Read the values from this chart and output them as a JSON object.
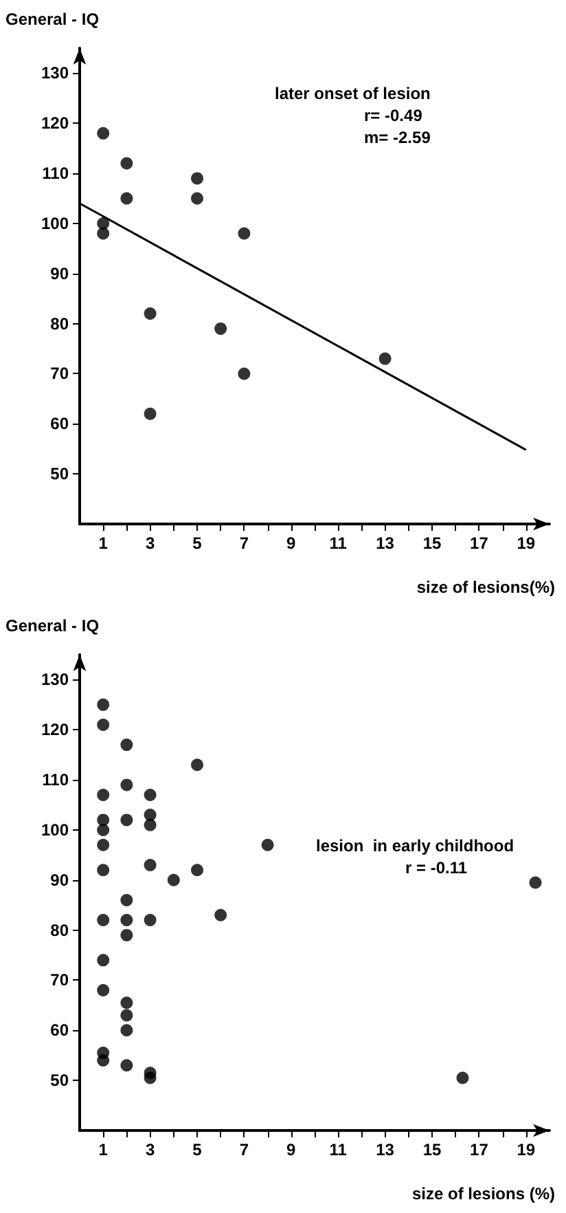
{
  "chart_data": [
    {
      "type": "scatter",
      "ylabel": "General - IQ",
      "xlabel": "size of lesions(%)",
      "annotations": [
        "later onset of lesion",
        "r= -0.49",
        "m= -2.59"
      ],
      "series": [
        {
          "color": "#000000",
          "x": [
            1,
            1,
            1,
            2,
            2,
            3,
            3,
            5,
            5,
            6,
            7,
            7,
            13
          ],
          "values": [
            118,
            100,
            98,
            112,
            105,
            82,
            62,
            109,
            105,
            79,
            98,
            70,
            73
          ]
        },
        {
          "type": "line",
          "color": "#000000",
          "marker": "none",
          "x": [
            0,
            19
          ],
          "values": [
            104,
            54.8
          ]
        }
      ],
      "xlim": [
        0,
        20
      ],
      "xticks": [
        1,
        {
          "value": 2,
          "label": null
        },
        3,
        {
          "value": 4,
          "label": null
        },
        5,
        {
          "value": 6,
          "label": null
        },
        7,
        {
          "value": 8,
          "label": null
        },
        9,
        {
          "value": 10,
          "label": null
        },
        11,
        {
          "value": 12,
          "label": null
        },
        13,
        {
          "value": 14,
          "label": null
        },
        15,
        {
          "value": 16,
          "label": null
        },
        17,
        {
          "value": 18,
          "label": null
        },
        19
      ],
      "ylim": [
        40,
        135
      ],
      "yticks": [
        50,
        60,
        70,
        80,
        90,
        100,
        110,
        120,
        130
      ],
      "grid": false,
      "marker": "circle"
    },
    {
      "type": "scatter",
      "ylabel": "General - IQ",
      "xlabel": "size of lesions (%)",
      "annotations": [
        "lesion  in early childhood",
        "r = -0.11"
      ],
      "series": [
        {
          "color": "#000000",
          "x": [
            1,
            1,
            1,
            1,
            1,
            1,
            1,
            1,
            1,
            1,
            1,
            1,
            2,
            2,
            2,
            2,
            2,
            2,
            2,
            2,
            2,
            2,
            3,
            3,
            3,
            3,
            3,
            3,
            3,
            4,
            5,
            5,
            6,
            8,
            16.3,
            19.4
          ],
          "values": [
            125,
            121,
            107,
            102,
            100,
            97,
            92,
            82,
            74,
            68,
            55.5,
            54,
            117,
            109,
            102,
            86,
            82,
            79,
            65.5,
            63,
            60,
            53,
            107,
            103,
            101,
            93,
            82,
            51.5,
            50.5,
            90,
            113,
            92,
            83,
            97,
            50.5,
            89.5
          ]
        }
      ],
      "xlim": [
        0,
        20
      ],
      "xticks": [
        1,
        {
          "value": 2,
          "label": null
        },
        3,
        {
          "value": 4,
          "label": null
        },
        5,
        {
          "value": 6,
          "label": null
        },
        7,
        {
          "value": 8,
          "label": null
        },
        9,
        {
          "value": 10,
          "label": null
        },
        11,
        {
          "value": 12,
          "label": null
        },
        13,
        {
          "value": 14,
          "label": null
        },
        15,
        {
          "value": 16,
          "label": null
        },
        17,
        {
          "value": 18,
          "label": null
        },
        19
      ],
      "ylim": [
        40,
        135
      ],
      "yticks": [
        50,
        60,
        70,
        80,
        90,
        100,
        110,
        120,
        130
      ],
      "grid": false,
      "marker": "circle"
    }
  ]
}
